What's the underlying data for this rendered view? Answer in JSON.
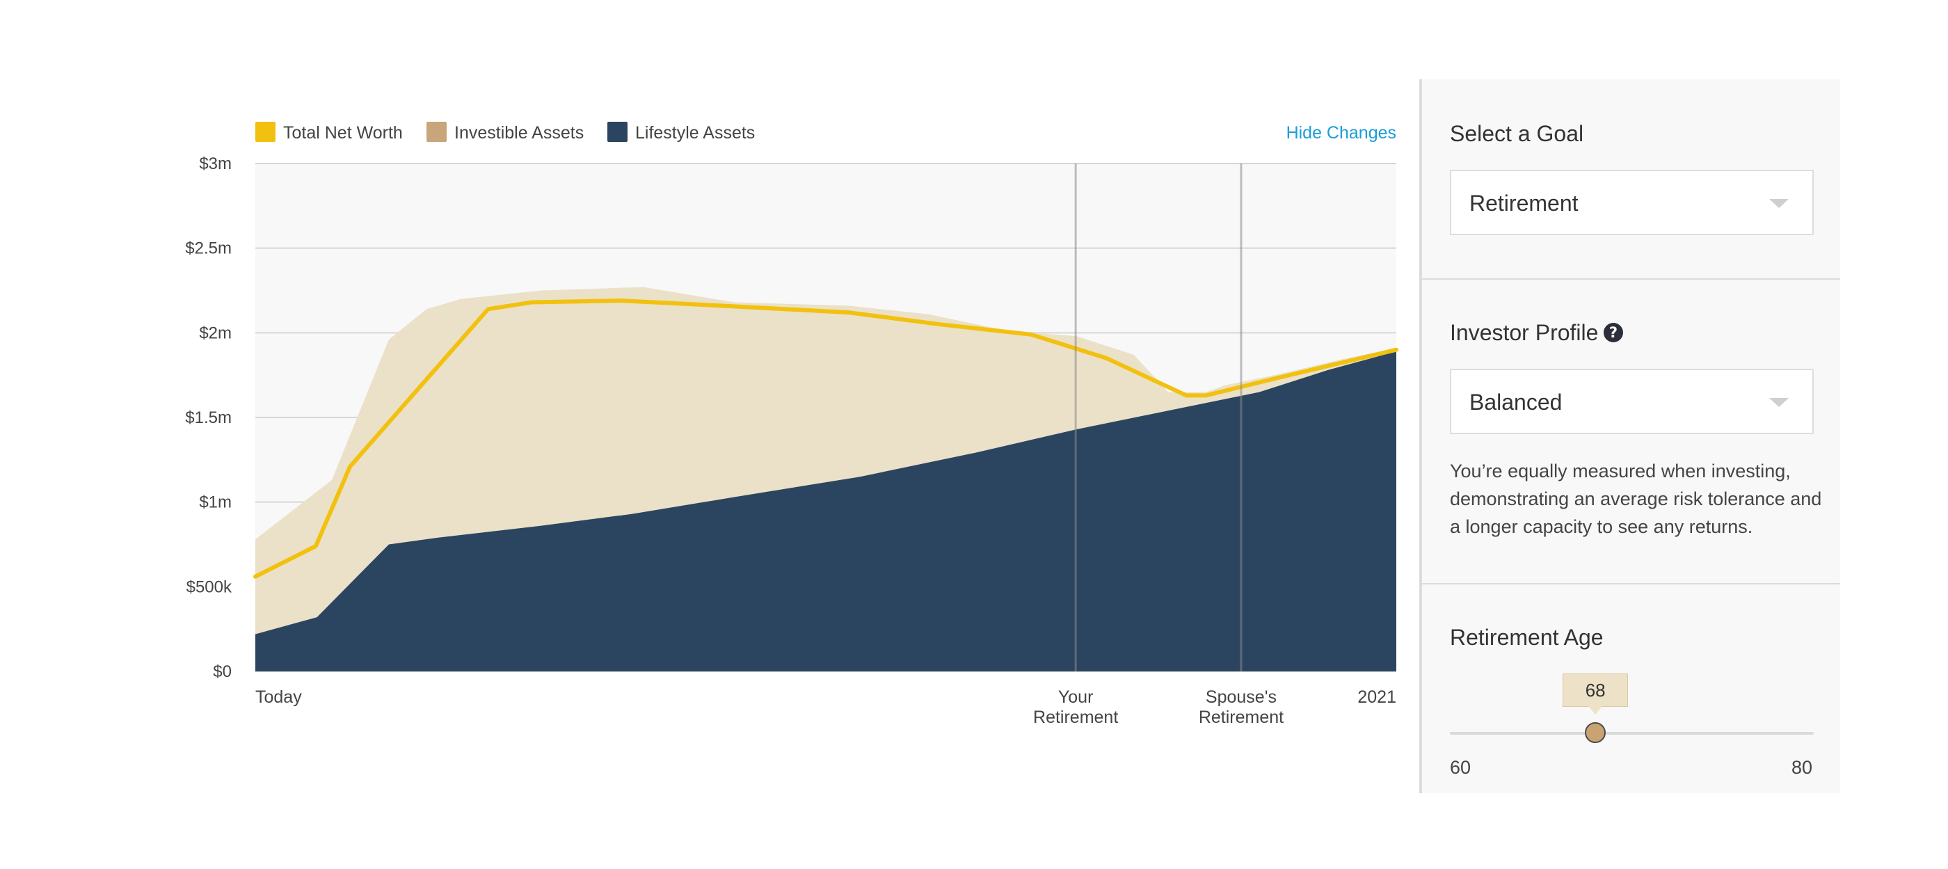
{
  "chart_data": {
    "type": "area",
    "title": "",
    "xlabel": "",
    "ylabel": "",
    "ylim": [
      0,
      3000000
    ],
    "yticks": [
      {
        "value": 0,
        "label": "$0"
      },
      {
        "value": 500000,
        "label": "$500k"
      },
      {
        "value": 1000000,
        "label": "$1m"
      },
      {
        "value": 1500000,
        "label": "$1.5m"
      },
      {
        "value": 2000000,
        "label": "$2m"
      },
      {
        "value": 2500000,
        "label": "$2.5m"
      },
      {
        "value": 3000000,
        "label": "$3m"
      }
    ],
    "x_range": [
      0,
      100
    ],
    "xticks": [
      {
        "value": 0,
        "lines": [
          "Today"
        ],
        "align": "start"
      },
      {
        "value": 71.9,
        "lines": [
          "Your",
          "Retirement"
        ],
        "align": "middle"
      },
      {
        "value": 86.4,
        "lines": [
          "Spouse's",
          "Retirement"
        ],
        "align": "middle"
      },
      {
        "value": 100,
        "lines": [
          "2021"
        ],
        "align": "end"
      }
    ],
    "markers": [
      {
        "value": 71.9,
        "label": "Your Retirement"
      },
      {
        "value": 86.4,
        "label": "Spouse's Retirement"
      }
    ],
    "grid": true,
    "legend_position": "top-left",
    "series": [
      {
        "name": "Investible Assets",
        "kind": "area",
        "color": "#ebe1c8",
        "x": [
          0,
          6.7,
          11.7,
          15,
          18,
          25,
          34,
          42,
          52,
          59,
          66,
          72,
          77,
          80,
          83.3,
          85,
          90,
          95,
          100
        ],
        "values": [
          780000,
          1130000,
          1960000,
          2140000,
          2200000,
          2250000,
          2270000,
          2180000,
          2160000,
          2110000,
          2010000,
          1980000,
          1870000,
          1650000,
          1650000,
          1690000,
          1760000,
          1840000,
          1910000
        ]
      },
      {
        "name": "Lifestyle Assets",
        "kind": "area",
        "color": "#2b4560",
        "x": [
          0,
          5.4,
          11.7,
          16,
          25,
          33,
          42,
          53,
          63,
          72,
          80,
          88,
          94,
          100
        ],
        "values": [
          220000,
          320000,
          750000,
          790000,
          860000,
          930000,
          1030000,
          1150000,
          1290000,
          1430000,
          1540000,
          1650000,
          1780000,
          1890000
        ]
      },
      {
        "name": "Total Net Worth",
        "kind": "line",
        "color": "#f2c10f",
        "x": [
          0,
          5.3,
          8.3,
          20.4,
          24.2,
          32.1,
          40.8,
          52,
          60,
          68,
          74.6,
          81.6,
          83.3,
          90,
          100
        ],
        "values": [
          560000,
          740000,
          1210000,
          2140000,
          2180000,
          2190000,
          2160000,
          2120000,
          2050000,
          1990000,
          1850000,
          1630000,
          1630000,
          1740000,
          1900000
        ]
      }
    ]
  },
  "legend": {
    "items": [
      {
        "label": "Total Net Worth",
        "color": "#f2c10f"
      },
      {
        "label": "Investible Assets",
        "color": "#c9a57b"
      },
      {
        "label": "Lifestyle Assets",
        "color": "#2b4560"
      }
    ],
    "hide_changes_label": "Hide Changes"
  },
  "panel": {
    "goal": {
      "title": "Select a Goal",
      "value": "Retirement"
    },
    "profile": {
      "title": "Investor Profile",
      "value": "Balanced",
      "description": "You’re equally measured when investing, demonstrating an average risk tolerance and a longer capacity to see any returns."
    },
    "retirement_age": {
      "title": "Retirement Age",
      "value": 68,
      "min": 60,
      "max": 80,
      "value_label": "68",
      "min_label": "60",
      "max_label": "80"
    }
  }
}
